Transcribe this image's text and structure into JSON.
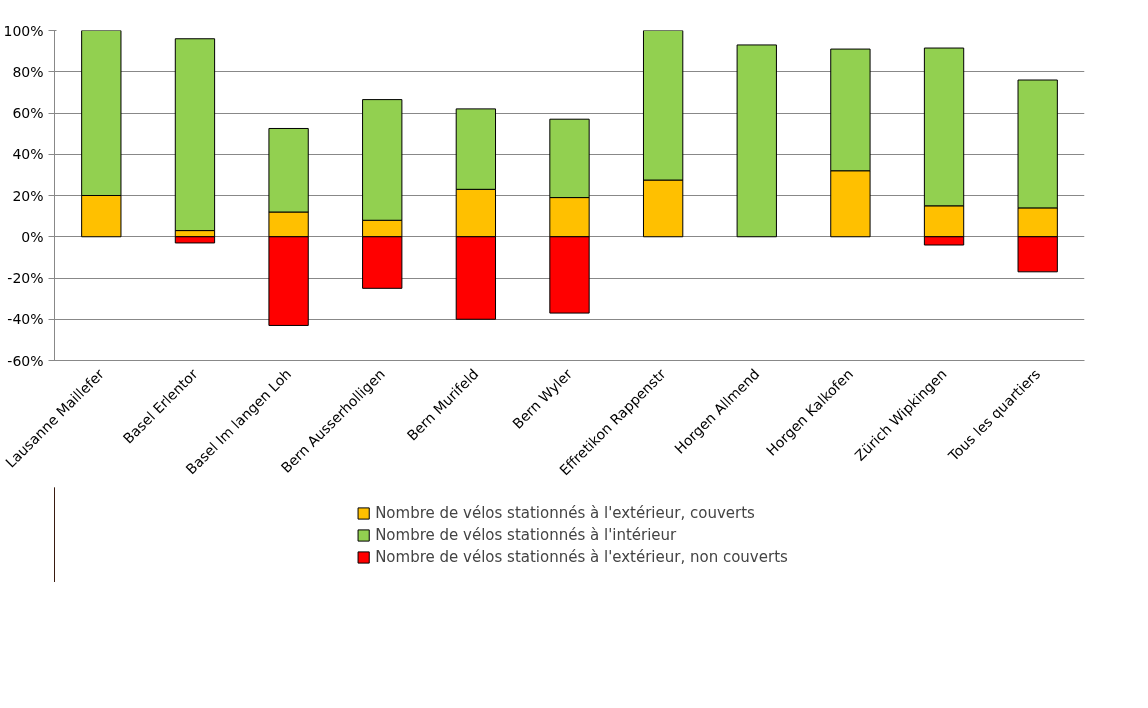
{
  "chart_data": {
    "type": "bar",
    "stacked": true,
    "categories": [
      "Lausanne Maillefer",
      "Basel Erlentor",
      "Basel Im langen Loh",
      "Bern Ausserholligen",
      "Bern Murifeld",
      "Bern Wyler",
      "Effretikon Rappenstr",
      "Horgen Allmend",
      "Horgen Kalkofen",
      "Zürich Wipkingen",
      "Tous les quartiers"
    ],
    "series": [
      {
        "name": "Nombre de vélos stationnés à l'extérieur, couverts",
        "color": "#ffc000",
        "values": [
          20,
          3,
          12,
          8,
          23,
          19,
          27.5,
          null,
          32,
          15,
          14
        ]
      },
      {
        "name": "Nombre de vélos stationnés à l'intérieur",
        "color": "#92d050",
        "values": [
          80,
          93,
          40.5,
          58.5,
          39,
          38,
          72.5,
          93,
          59,
          76.5,
          62
        ]
      },
      {
        "name": "Nombre de vélos stationnés à l'extérieur, non couverts",
        "color": "#ff0000",
        "values": [
          null,
          -3,
          -43,
          -25,
          -40,
          -37,
          null,
          null,
          null,
          -4,
          -17
        ]
      }
    ],
    "ylim": [
      -60,
      100
    ],
    "yticks": [
      {
        "value": -60,
        "label": "-60%"
      },
      {
        "value": -40,
        "label": "-40%"
      },
      {
        "value": -20,
        "label": "-20%"
      },
      {
        "value": 0,
        "label": "0%"
      },
      {
        "value": 20,
        "label": "20%"
      },
      {
        "value": 40,
        "label": "40%"
      },
      {
        "value": 60,
        "label": "60%"
      },
      {
        "value": 80,
        "label": "80%"
      },
      {
        "value": 100,
        "label": "100%"
      }
    ],
    "grid": "y",
    "legend": "bottom"
  }
}
